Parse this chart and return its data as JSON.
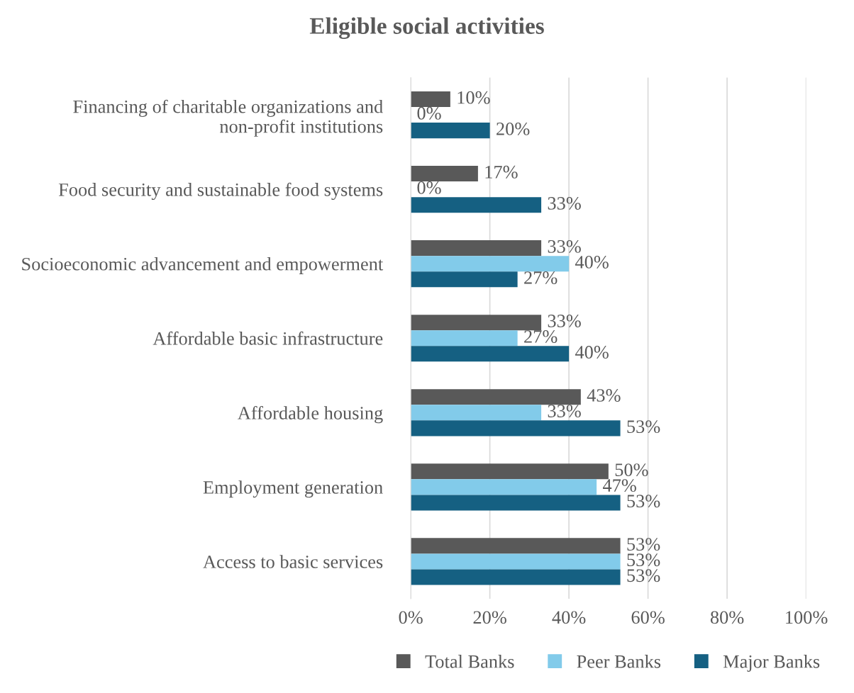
{
  "chart_data": {
    "type": "bar",
    "orientation": "horizontal",
    "title": "Eligible social activities",
    "categories": [
      "Financing of charitable organizations and non-profit institutions",
      "Food security and sustainable food systems",
      "Socioeconomic advancement and empowerment",
      "Affordable basic infrastructure",
      "Affordable housing",
      "Employment generation",
      "Access to basic services"
    ],
    "series": [
      {
        "name": "Total Banks",
        "color": "#595959",
        "values": [
          10,
          17,
          33,
          33,
          43,
          50,
          53
        ],
        "value_labels": [
          "10%",
          "17%",
          "33%",
          "33%",
          "43%",
          "50%",
          "53%"
        ]
      },
      {
        "name": "Peer Banks",
        "color": "#82cbea",
        "values": [
          0,
          0,
          40,
          27,
          33,
          47,
          53
        ],
        "value_labels": [
          "0%",
          "0%",
          "40%",
          "27%",
          "33%",
          "47%",
          "53%"
        ]
      },
      {
        "name": "Major Banks",
        "color": "#156082",
        "values": [
          20,
          33,
          27,
          40,
          53,
          53,
          53
        ],
        "value_labels": [
          "20%",
          "33%",
          "27%",
          "40%",
          "53%",
          "53%",
          "53%"
        ]
      }
    ],
    "xlim": [
      0,
      100
    ],
    "xticks": [
      {
        "value": 0,
        "label": "0%"
      },
      {
        "value": 20,
        "label": "20%"
      },
      {
        "value": 40,
        "label": "40%"
      },
      {
        "value": 60,
        "label": "60%"
      },
      {
        "value": 80,
        "label": "80%"
      },
      {
        "value": 100,
        "label": "100%"
      }
    ],
    "grid": "x",
    "legend": "bottom"
  }
}
